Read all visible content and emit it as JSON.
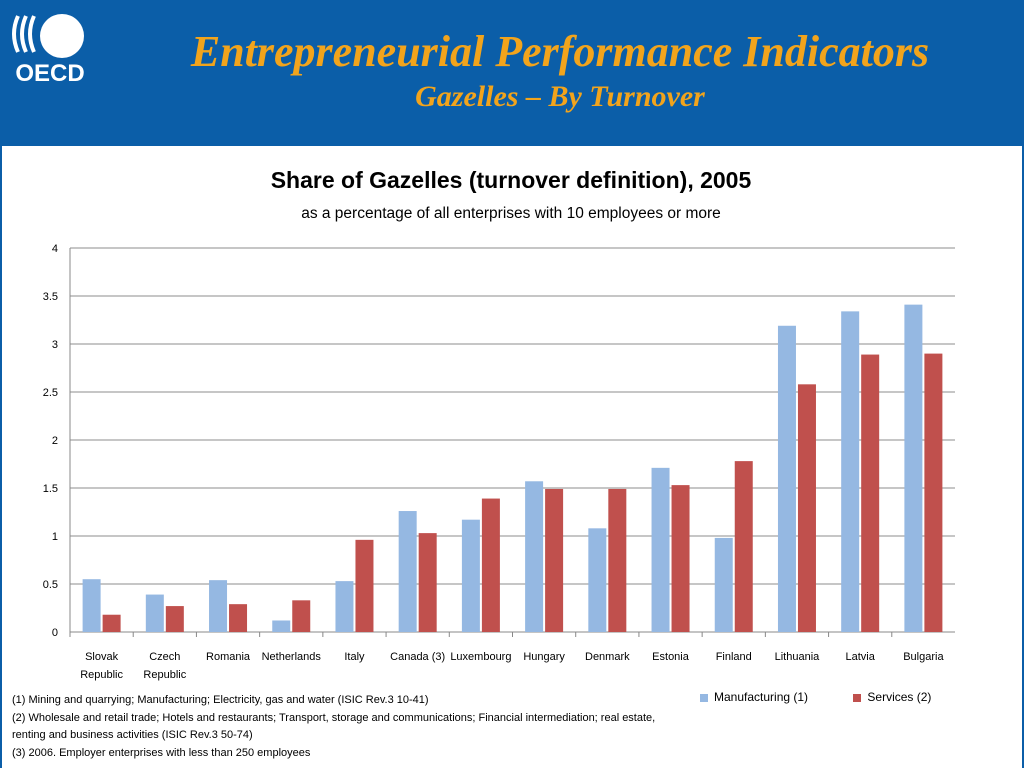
{
  "header": {
    "logo_text": "OECD",
    "title": "Entrepreneurial Performance Indicators",
    "subtitle": "Gazelles – By Turnover"
  },
  "colors": {
    "header_bg": "#0b5ea8",
    "title_color": "#f2a41c",
    "manufacturing": "#95b8e2",
    "services": "#c0504d"
  },
  "chart_data": {
    "type": "bar",
    "title": "Share of Gazelles (turnover definition), 2005",
    "subtitle": "as a percentage of all enterprises with 10 employees or more",
    "categories": [
      [
        "Slovak",
        "Republic"
      ],
      [
        "Czech",
        "Republic"
      ],
      [
        "Romania"
      ],
      [
        "Netherlands"
      ],
      [
        "Italy"
      ],
      [
        "Canada (3)"
      ],
      [
        "Luxembourg"
      ],
      [
        "Hungary"
      ],
      [
        "Denmark"
      ],
      [
        "Estonia"
      ],
      [
        "Finland"
      ],
      [
        "Lithuania"
      ],
      [
        "Latvia"
      ],
      [
        "Bulgaria"
      ]
    ],
    "series": [
      {
        "name": "Manufacturing (1)",
        "values": [
          0.55,
          0.39,
          0.54,
          0.12,
          0.53,
          1.26,
          1.17,
          1.57,
          1.08,
          1.71,
          0.98,
          3.19,
          3.34,
          3.41
        ]
      },
      {
        "name": "Services (2)",
        "values": [
          0.18,
          0.27,
          0.29,
          0.33,
          0.96,
          1.03,
          1.39,
          1.49,
          1.49,
          1.53,
          1.78,
          2.58,
          2.89,
          2.9
        ]
      }
    ],
    "ylim": [
      0,
      4
    ],
    "yticks": [
      "0",
      "0.5",
      "1",
      "1.5",
      "2",
      "2.5",
      "3",
      "3.5",
      "4"
    ],
    "grid": true,
    "legend_position": "bottom-right"
  },
  "notes": [
    "(1) Mining and quarrying;  Manufacturing;  Electricity, gas and water (ISIC Rev.3 10-41)",
    "(2) Wholesale and retail trade; Hotels and restaurants; Transport,  storage and communications; Financial intermediation; real  estate,",
    "renting and business activities (ISIC Rev.3 50-74)",
    "(3) 2006. Employer enterprises with less than 250 employees"
  ]
}
